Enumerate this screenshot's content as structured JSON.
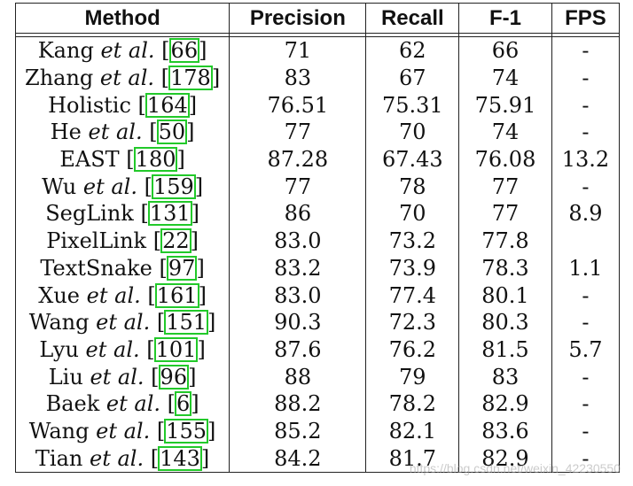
{
  "headers": [
    "Method",
    "Precision",
    "Recall",
    "F-1",
    "FPS"
  ],
  "rows": [
    {
      "name": "Kang",
      "etal": "et al.",
      "ref": "66",
      "precision": "71",
      "recall": "62",
      "f1": "66",
      "fps": "-"
    },
    {
      "name": "Zhang",
      "etal": "et al.",
      "ref": "178",
      "precision": "83",
      "recall": "67",
      "f1": "74",
      "fps": "-"
    },
    {
      "name": "Holistic",
      "etal": "",
      "ref": "164",
      "precision": "76.51",
      "recall": "75.31",
      "f1": "75.91",
      "fps": "-"
    },
    {
      "name": "He",
      "etal": "et al.",
      "ref": "50",
      "precision": "77",
      "recall": "70",
      "f1": "74",
      "fps": "-"
    },
    {
      "name": "EAST",
      "etal": "",
      "ref": "180",
      "precision": "87.28",
      "recall": "67.43",
      "f1": "76.08",
      "fps": "13.2"
    },
    {
      "name": "Wu",
      "etal": "et al.",
      "ref": "159",
      "precision": "77",
      "recall": "78",
      "f1": "77",
      "fps": "-"
    },
    {
      "name": "SegLink",
      "etal": "",
      "ref": "131",
      "precision": "86",
      "recall": "70",
      "f1": "77",
      "fps": "8.9"
    },
    {
      "name": "PixelLink",
      "etal": "",
      "ref": "22",
      "precision": "83.0",
      "recall": "73.2",
      "f1": "77.8",
      "fps": ""
    },
    {
      "name": "TextSnake",
      "etal": "",
      "ref": "97",
      "precision": "83.2",
      "recall": "73.9",
      "f1": "78.3",
      "fps": "1.1"
    },
    {
      "name": "Xue",
      "etal": "et al.",
      "ref": "161",
      "precision": "83.0",
      "recall": "77.4",
      "f1": "80.1",
      "fps": "-"
    },
    {
      "name": "Wang",
      "etal": "et al.",
      "ref": "151",
      "precision": "90.3",
      "recall": "72.3",
      "f1": "80.3",
      "fps": "-"
    },
    {
      "name": "Lyu",
      "etal": "et al.",
      "ref": "101",
      "precision": "87.6",
      "recall": "76.2",
      "f1": "81.5",
      "fps": "5.7"
    },
    {
      "name": "Liu",
      "etal": "et al.",
      "ref": "96",
      "precision": "88",
      "recall": "79",
      "f1": "83",
      "fps": "-"
    },
    {
      "name": "Baek",
      "etal": "et al.",
      "ref": "6",
      "precision": "88.2",
      "recall": "78.2",
      "f1": "82.9",
      "fps": "-"
    },
    {
      "name": "Wang",
      "etal": "et al.",
      "ref": "155",
      "precision": "85.2",
      "recall": "82.1",
      "f1": "83.6",
      "fps": "-"
    },
    {
      "name": "Tian",
      "etal": "et al.",
      "ref": "143",
      "precision": "84.2",
      "recall": "81.7",
      "f1": "82.9",
      "fps": "-"
    }
  ],
  "watermark": "https://blog.csdn.net/weixin_42230550",
  "ref_box_color": "#22c92a"
}
